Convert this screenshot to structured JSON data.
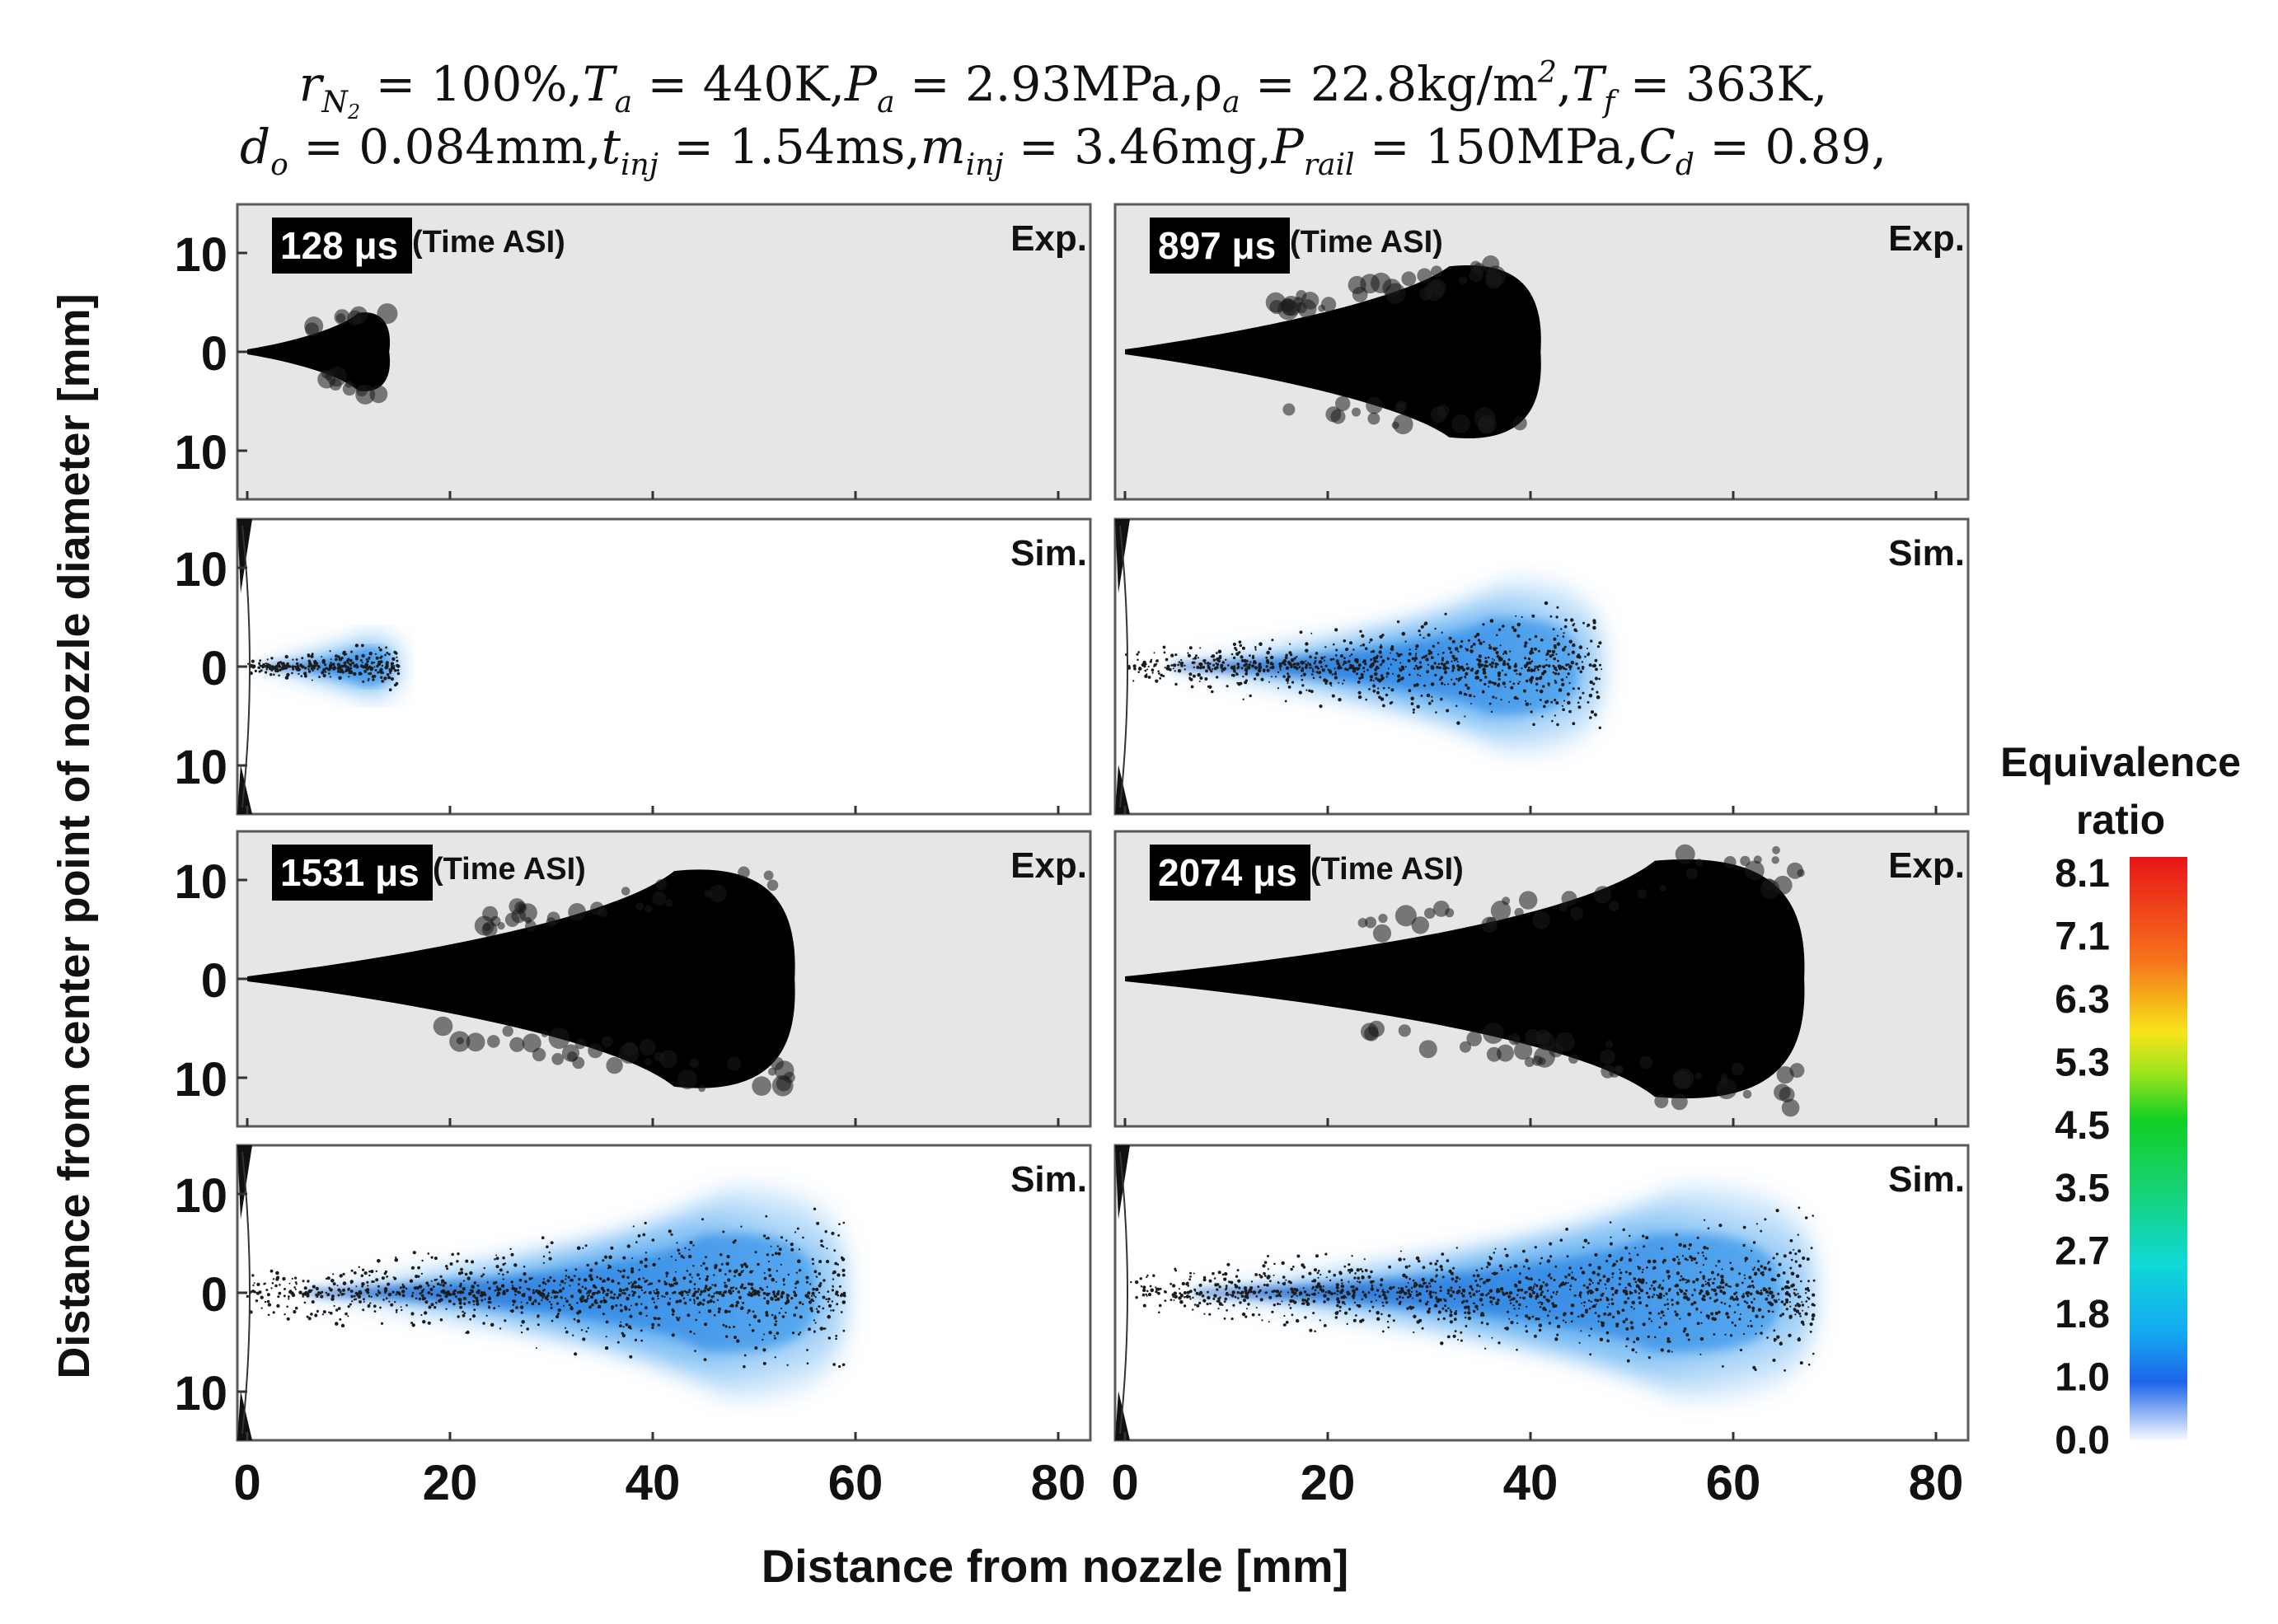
{
  "header": {
    "line1": {
      "r_sym": "r",
      "r_sub": "N",
      "r_sub2": "2",
      "r_val": " = 100%,",
      "Ta_sym": "T",
      "Ta_sub": "a",
      "Ta_val": " = 440K,",
      "Pa_sym": "P",
      "Pa_sub": "a",
      "Pa_val": " = 2.93MPa,",
      "rho_sym": "ρ",
      "rho_sub": "a",
      "rho_val": " = 22.8kg/m",
      "rho_exp": "2",
      "rho_end": ",",
      "Tf_sym": "T",
      "Tf_sub": "f",
      "Tf_val": " = 363K,"
    },
    "line2": {
      "do_sym": "d",
      "do_sub": "o",
      "do_val": " = 0.084mm,",
      "tinj_sym": "t",
      "tinj_sub": "inj",
      "tinj_val": " = 1.54ms,",
      "minj_sym": "m",
      "minj_sub": "inj",
      "minj_val": " = 3.46mg,",
      "prail_sym": "P",
      "prail_sub": "rail",
      "prail_val": " = 150MPa,",
      "cd_sym": "C",
      "cd_sub": "d",
      "cd_val": " = 0.89,"
    }
  },
  "panels": [
    {
      "time": "128 μs",
      "time_note": "(Time ASI)",
      "type": "Exp.",
      "tip_mm": 14
    },
    {
      "time": "897 μs",
      "time_note": "(Time ASI)",
      "type": "Exp.",
      "tip_mm": 41
    },
    {
      "type": "Sim.",
      "tip_mm": 15
    },
    {
      "type": "Sim.",
      "tip_mm": 47
    },
    {
      "time": "1531 μs",
      "time_note": "(Time ASI)",
      "type": "Exp.",
      "tip_mm": 54
    },
    {
      "time": "2074 μs",
      "time_note": "(Time ASI)",
      "type": "Exp.",
      "tip_mm": 67
    },
    {
      "type": "Sim.",
      "tip_mm": 59
    },
    {
      "type": "Sim.",
      "tip_mm": 68
    }
  ],
  "y_ticks": [
    "10",
    "0",
    "10"
  ],
  "x_ticks": [
    "0",
    "20",
    "40",
    "60",
    "80"
  ],
  "x_label": "Distance from nozzle [mm]",
  "y_label": "Distance from center point of nozzle diameter [mm]",
  "colorbar": {
    "title_line1": "Equivalence",
    "title_line2": "ratio",
    "ticks": [
      "8.1",
      "7.1",
      "6.3",
      "5.3",
      "4.5",
      "3.5",
      "2.7",
      "1.8",
      "1.0",
      "0.0"
    ]
  },
  "colors": {
    "spray_black": "#000000",
    "exp_background": "#e6e6e6",
    "sim_blue": "#2f8fe8",
    "sim_blue_dark": "#1464c8"
  }
}
